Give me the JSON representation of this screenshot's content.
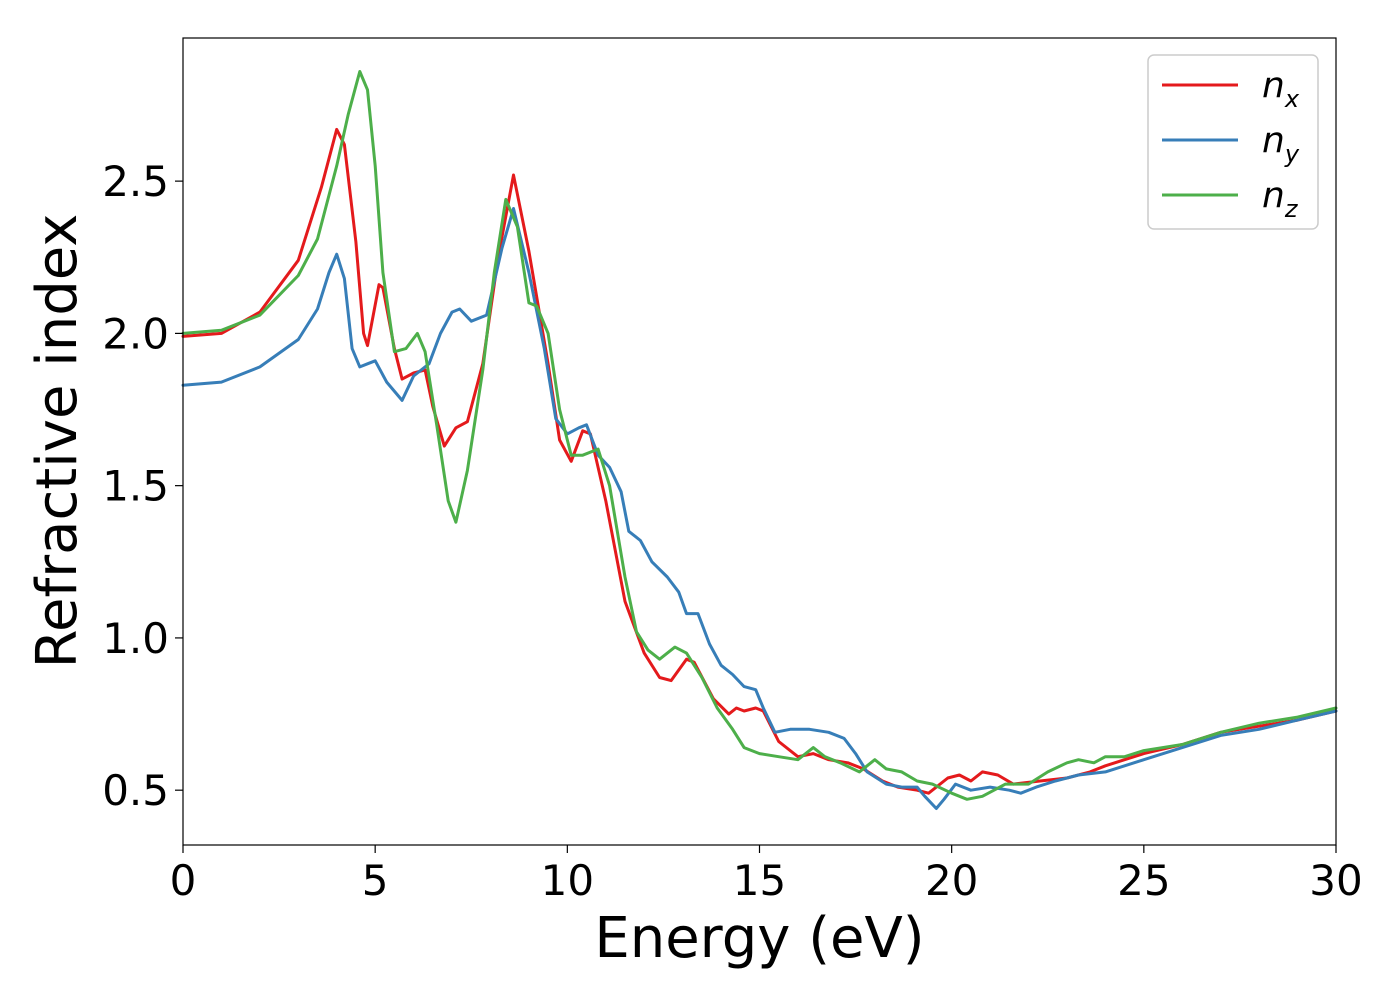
{
  "chart_data": {
    "type": "line",
    "title": "",
    "xlabel": "Energy (eV)",
    "ylabel": "Refractive index",
    "xlim": [
      0,
      30
    ],
    "ylim": [
      0.32,
      2.97
    ],
    "xticks": [
      0,
      5,
      10,
      15,
      20,
      25,
      30
    ],
    "xtick_labels": [
      "0",
      "5",
      "10",
      "15",
      "20",
      "25",
      "30"
    ],
    "yticks": [
      0.5,
      1.0,
      1.5,
      2.0,
      2.5
    ],
    "ytick_labels": [
      "0.5",
      "1.0",
      "1.5",
      "2.0",
      "2.5"
    ],
    "grid": false,
    "legend_position": "top-right",
    "series": [
      {
        "name": "n",
        "subscript": "x",
        "color": "#e41a1c",
        "points": [
          [
            0,
            1.99
          ],
          [
            1,
            2.0
          ],
          [
            2,
            2.07
          ],
          [
            3,
            2.24
          ],
          [
            3.6,
            2.48
          ],
          [
            4.0,
            2.67
          ],
          [
            4.2,
            2.62
          ],
          [
            4.5,
            2.3
          ],
          [
            4.7,
            2.0
          ],
          [
            4.8,
            1.96
          ],
          [
            5.1,
            2.16
          ],
          [
            5.2,
            2.15
          ],
          [
            5.5,
            1.95
          ],
          [
            5.7,
            1.85
          ],
          [
            6.0,
            1.87
          ],
          [
            6.3,
            1.88
          ],
          [
            6.5,
            1.76
          ],
          [
            6.8,
            1.63
          ],
          [
            7.1,
            1.69
          ],
          [
            7.4,
            1.71
          ],
          [
            7.8,
            1.9
          ],
          [
            8.2,
            2.25
          ],
          [
            8.6,
            2.52
          ],
          [
            9.0,
            2.27
          ],
          [
            9.5,
            1.9
          ],
          [
            9.8,
            1.65
          ],
          [
            10.1,
            1.58
          ],
          [
            10.4,
            1.68
          ],
          [
            10.6,
            1.67
          ],
          [
            11.0,
            1.45
          ],
          [
            11.5,
            1.12
          ],
          [
            12.0,
            0.95
          ],
          [
            12.4,
            0.87
          ],
          [
            12.7,
            0.86
          ],
          [
            13.1,
            0.93
          ],
          [
            13.3,
            0.92
          ],
          [
            13.8,
            0.8
          ],
          [
            14.2,
            0.75
          ],
          [
            14.4,
            0.77
          ],
          [
            14.6,
            0.76
          ],
          [
            14.9,
            0.77
          ],
          [
            15.1,
            0.76
          ],
          [
            15.5,
            0.66
          ],
          [
            16.0,
            0.61
          ],
          [
            16.4,
            0.62
          ],
          [
            16.8,
            0.6
          ],
          [
            17.3,
            0.59
          ],
          [
            17.7,
            0.57
          ],
          [
            18.2,
            0.53
          ],
          [
            18.6,
            0.51
          ],
          [
            19.1,
            0.5
          ],
          [
            19.4,
            0.49
          ],
          [
            19.9,
            0.54
          ],
          [
            20.2,
            0.55
          ],
          [
            20.5,
            0.53
          ],
          [
            20.8,
            0.56
          ],
          [
            21.2,
            0.55
          ],
          [
            21.6,
            0.52
          ],
          [
            22.3,
            0.53
          ],
          [
            23.0,
            0.54
          ],
          [
            23.6,
            0.56
          ],
          [
            24.0,
            0.58
          ],
          [
            24.5,
            0.6
          ],
          [
            25.0,
            0.62
          ],
          [
            26.0,
            0.65
          ],
          [
            27.0,
            0.69
          ],
          [
            28.0,
            0.71
          ],
          [
            29.0,
            0.73
          ],
          [
            30.0,
            0.76
          ]
        ]
      },
      {
        "name": "n",
        "subscript": "y",
        "color": "#377eb8",
        "points": [
          [
            0,
            1.83
          ],
          [
            1,
            1.84
          ],
          [
            2,
            1.89
          ],
          [
            3,
            1.98
          ],
          [
            3.5,
            2.08
          ],
          [
            3.8,
            2.2
          ],
          [
            4.0,
            2.26
          ],
          [
            4.2,
            2.18
          ],
          [
            4.4,
            1.95
          ],
          [
            4.6,
            1.89
          ],
          [
            4.8,
            1.9
          ],
          [
            5.0,
            1.91
          ],
          [
            5.3,
            1.84
          ],
          [
            5.7,
            1.78
          ],
          [
            6.0,
            1.86
          ],
          [
            6.4,
            1.9
          ],
          [
            6.7,
            2.0
          ],
          [
            7.0,
            2.07
          ],
          [
            7.2,
            2.08
          ],
          [
            7.5,
            2.04
          ],
          [
            7.9,
            2.06
          ],
          [
            8.3,
            2.28
          ],
          [
            8.6,
            2.41
          ],
          [
            9.0,
            2.2
          ],
          [
            9.4,
            1.95
          ],
          [
            9.7,
            1.72
          ],
          [
            10.0,
            1.67
          ],
          [
            10.3,
            1.69
          ],
          [
            10.5,
            1.7
          ],
          [
            10.8,
            1.6
          ],
          [
            11.1,
            1.56
          ],
          [
            11.4,
            1.48
          ],
          [
            11.6,
            1.35
          ],
          [
            11.9,
            1.32
          ],
          [
            12.2,
            1.25
          ],
          [
            12.6,
            1.2
          ],
          [
            12.9,
            1.15
          ],
          [
            13.1,
            1.08
          ],
          [
            13.4,
            1.08
          ],
          [
            13.7,
            0.98
          ],
          [
            14.0,
            0.91
          ],
          [
            14.3,
            0.88
          ],
          [
            14.6,
            0.84
          ],
          [
            14.9,
            0.83
          ],
          [
            15.1,
            0.77
          ],
          [
            15.4,
            0.69
          ],
          [
            15.8,
            0.7
          ],
          [
            16.3,
            0.7
          ],
          [
            16.8,
            0.69
          ],
          [
            17.2,
            0.67
          ],
          [
            17.5,
            0.62
          ],
          [
            17.8,
            0.56
          ],
          [
            18.3,
            0.52
          ],
          [
            18.7,
            0.51
          ],
          [
            19.1,
            0.51
          ],
          [
            19.3,
            0.48
          ],
          [
            19.6,
            0.44
          ],
          [
            19.8,
            0.47
          ],
          [
            20.1,
            0.52
          ],
          [
            20.5,
            0.5
          ],
          [
            21.0,
            0.51
          ],
          [
            21.5,
            0.5
          ],
          [
            21.8,
            0.49
          ],
          [
            22.2,
            0.51
          ],
          [
            22.7,
            0.53
          ],
          [
            23.3,
            0.55
          ],
          [
            24.0,
            0.56
          ],
          [
            24.5,
            0.58
          ],
          [
            25.0,
            0.6
          ],
          [
            26.0,
            0.64
          ],
          [
            27.0,
            0.68
          ],
          [
            28.0,
            0.7
          ],
          [
            29.0,
            0.73
          ],
          [
            30.0,
            0.76
          ]
        ]
      },
      {
        "name": "n",
        "subscript": "z",
        "color": "#4daf4a",
        "points": [
          [
            0,
            2.0
          ],
          [
            1,
            2.01
          ],
          [
            2,
            2.06
          ],
          [
            3,
            2.19
          ],
          [
            3.5,
            2.31
          ],
          [
            4.0,
            2.55
          ],
          [
            4.3,
            2.72
          ],
          [
            4.6,
            2.86
          ],
          [
            4.8,
            2.8
          ],
          [
            5.0,
            2.55
          ],
          [
            5.2,
            2.2
          ],
          [
            5.5,
            1.94
          ],
          [
            5.8,
            1.95
          ],
          [
            6.1,
            2.0
          ],
          [
            6.3,
            1.94
          ],
          [
            6.6,
            1.7
          ],
          [
            6.9,
            1.45
          ],
          [
            7.1,
            1.38
          ],
          [
            7.4,
            1.55
          ],
          [
            7.8,
            1.88
          ],
          [
            8.1,
            2.2
          ],
          [
            8.4,
            2.44
          ],
          [
            8.7,
            2.35
          ],
          [
            9.0,
            2.1
          ],
          [
            9.2,
            2.09
          ],
          [
            9.5,
            2.0
          ],
          [
            9.8,
            1.75
          ],
          [
            10.1,
            1.6
          ],
          [
            10.4,
            1.6
          ],
          [
            10.8,
            1.62
          ],
          [
            11.1,
            1.5
          ],
          [
            11.5,
            1.2
          ],
          [
            11.8,
            1.02
          ],
          [
            12.1,
            0.96
          ],
          [
            12.4,
            0.93
          ],
          [
            12.8,
            0.97
          ],
          [
            13.1,
            0.95
          ],
          [
            13.5,
            0.87
          ],
          [
            13.9,
            0.77
          ],
          [
            14.3,
            0.7
          ],
          [
            14.6,
            0.64
          ],
          [
            15.0,
            0.62
          ],
          [
            15.5,
            0.61
          ],
          [
            16.0,
            0.6
          ],
          [
            16.4,
            0.64
          ],
          [
            16.7,
            0.61
          ],
          [
            17.1,
            0.59
          ],
          [
            17.6,
            0.56
          ],
          [
            18.0,
            0.6
          ],
          [
            18.3,
            0.57
          ],
          [
            18.7,
            0.56
          ],
          [
            19.1,
            0.53
          ],
          [
            19.5,
            0.52
          ],
          [
            20.0,
            0.49
          ],
          [
            20.4,
            0.47
          ],
          [
            20.8,
            0.48
          ],
          [
            21.4,
            0.52
          ],
          [
            22.0,
            0.52
          ],
          [
            22.5,
            0.56
          ],
          [
            23.0,
            0.59
          ],
          [
            23.3,
            0.6
          ],
          [
            23.7,
            0.59
          ],
          [
            24.0,
            0.61
          ],
          [
            24.5,
            0.61
          ],
          [
            25.0,
            0.63
          ],
          [
            26.0,
            0.65
          ],
          [
            27.0,
            0.69
          ],
          [
            28.0,
            0.72
          ],
          [
            29.0,
            0.74
          ],
          [
            30.0,
            0.77
          ]
        ]
      }
    ]
  }
}
